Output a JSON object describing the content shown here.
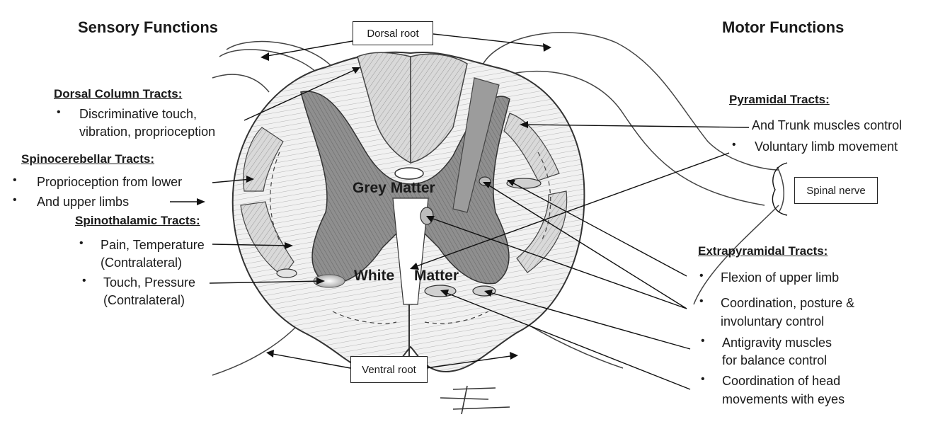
{
  "headings": {
    "sensory": "Sensory Functions",
    "motor": "Motor Functions"
  },
  "boxes": {
    "dorsal_root": "Dorsal root",
    "ventral_root": "Ventral root",
    "spinal_nerve": "Spinal nerve"
  },
  "center_labels": {
    "grey_matter": "Grey Matter",
    "white": "White",
    "matter": "Matter"
  },
  "sensory": {
    "dorsal_column": {
      "title": "Dorsal Column Tracts:",
      "items": [
        [
          "Discriminative touch,",
          "vibration, proprioception"
        ]
      ]
    },
    "spinocerebellar": {
      "title": "Spinocerebellar Tracts:",
      "items": [
        [
          "Proprioception from lower"
        ],
        [
          "And upper limbs"
        ]
      ]
    },
    "spinothalamic": {
      "title": "Spinothalamic Tracts:",
      "items": [
        [
          "Pain, Temperature",
          "(Contralateral)"
        ],
        [
          "Touch, Pressure",
          "(Contralateral)"
        ]
      ]
    }
  },
  "motor": {
    "pyramidal": {
      "title": "Pyramidal Tracts:",
      "items": [
        [
          "And Trunk muscles control"
        ],
        [
          "Voluntary limb movement"
        ]
      ]
    },
    "extrapyramidal": {
      "title": "Extrapyramidal Tracts:",
      "items": [
        [
          "Flexion of upper limb"
        ],
        [
          "Coordination, posture &",
          "involuntary control"
        ],
        [
          "Antigravity muscles",
          "for balance control"
        ],
        [
          "Coordination of head",
          "movements with eyes"
        ]
      ]
    }
  },
  "bullet_char": "•"
}
